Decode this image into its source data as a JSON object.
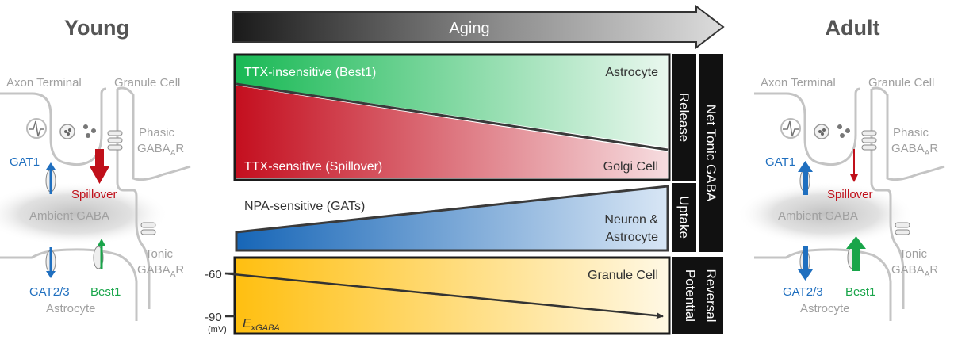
{
  "panels": {
    "young": {
      "title": "Young",
      "axon": "Axon Terminal",
      "granule": "Granule Cell",
      "phasic_1": "Phasic",
      "phasic_2": "GABA",
      "phasic_sub": "A",
      "phasic_3": "R",
      "gat1": "GAT1",
      "spillover": "Spillover",
      "ambient": "Ambient GABA",
      "tonic_1": "Tonic",
      "tonic_2": "GABA",
      "tonic_sub": "A",
      "tonic_3": "R",
      "gat23": "GAT2/3",
      "best1": "Best1",
      "astrocyte": "Astrocyte"
    },
    "adult": {
      "title": "Adult",
      "axon": "Axon Terminal",
      "granule": "Granule Cell",
      "phasic_1": "Phasic",
      "phasic_2": "GABA",
      "phasic_sub": "A",
      "phasic_3": "R",
      "gat1": "GAT1",
      "spillover": "Spillover",
      "ambient": "Ambient GABA",
      "tonic_1": "Tonic",
      "tonic_2": "GABA",
      "tonic_sub": "A",
      "tonic_3": "R",
      "gat23": "GAT2/3",
      "best1": "Best1",
      "astrocyte": "Astrocyte"
    }
  },
  "aging_label": "Aging",
  "release": {
    "ttx_insensitive": "TTX-insensitive (Best1)",
    "astrocyte": "Astrocyte",
    "ttx_sensitive": "TTX-sensitive (Spillover)",
    "golgi": "Golgi Cell",
    "side_label": "Release"
  },
  "uptake": {
    "npa": "NPA-sensitive (GATs)",
    "neuron_1": "Neuron &",
    "neuron_2": "Astrocyte",
    "side_label": "Uptake"
  },
  "net_tonic": "Net Tonic GABA",
  "reversal": {
    "granule": "Granule Cell",
    "y_top": "-60",
    "y_bottom": "-90",
    "unit": "(mV)",
    "exgaba_main": "E",
    "exgaba_sub": "xGABA",
    "side_label_1": "Reversal",
    "side_label_2": "Potential"
  },
  "colors": {
    "green": "#1db954",
    "red": "#c8102e",
    "blue": "#1f6fbf",
    "yellow": "#ffc20e",
    "gray_text": "#8c8c8c",
    "gat_blue": "#1f6fbf",
    "best1_green": "#19a54a",
    "spill_red": "#c0101a"
  },
  "icons": [
    "arrow-right-icon",
    "synaptic-vesicle-icon",
    "action-potential-icon",
    "receptor-icon",
    "transporter-icon"
  ]
}
